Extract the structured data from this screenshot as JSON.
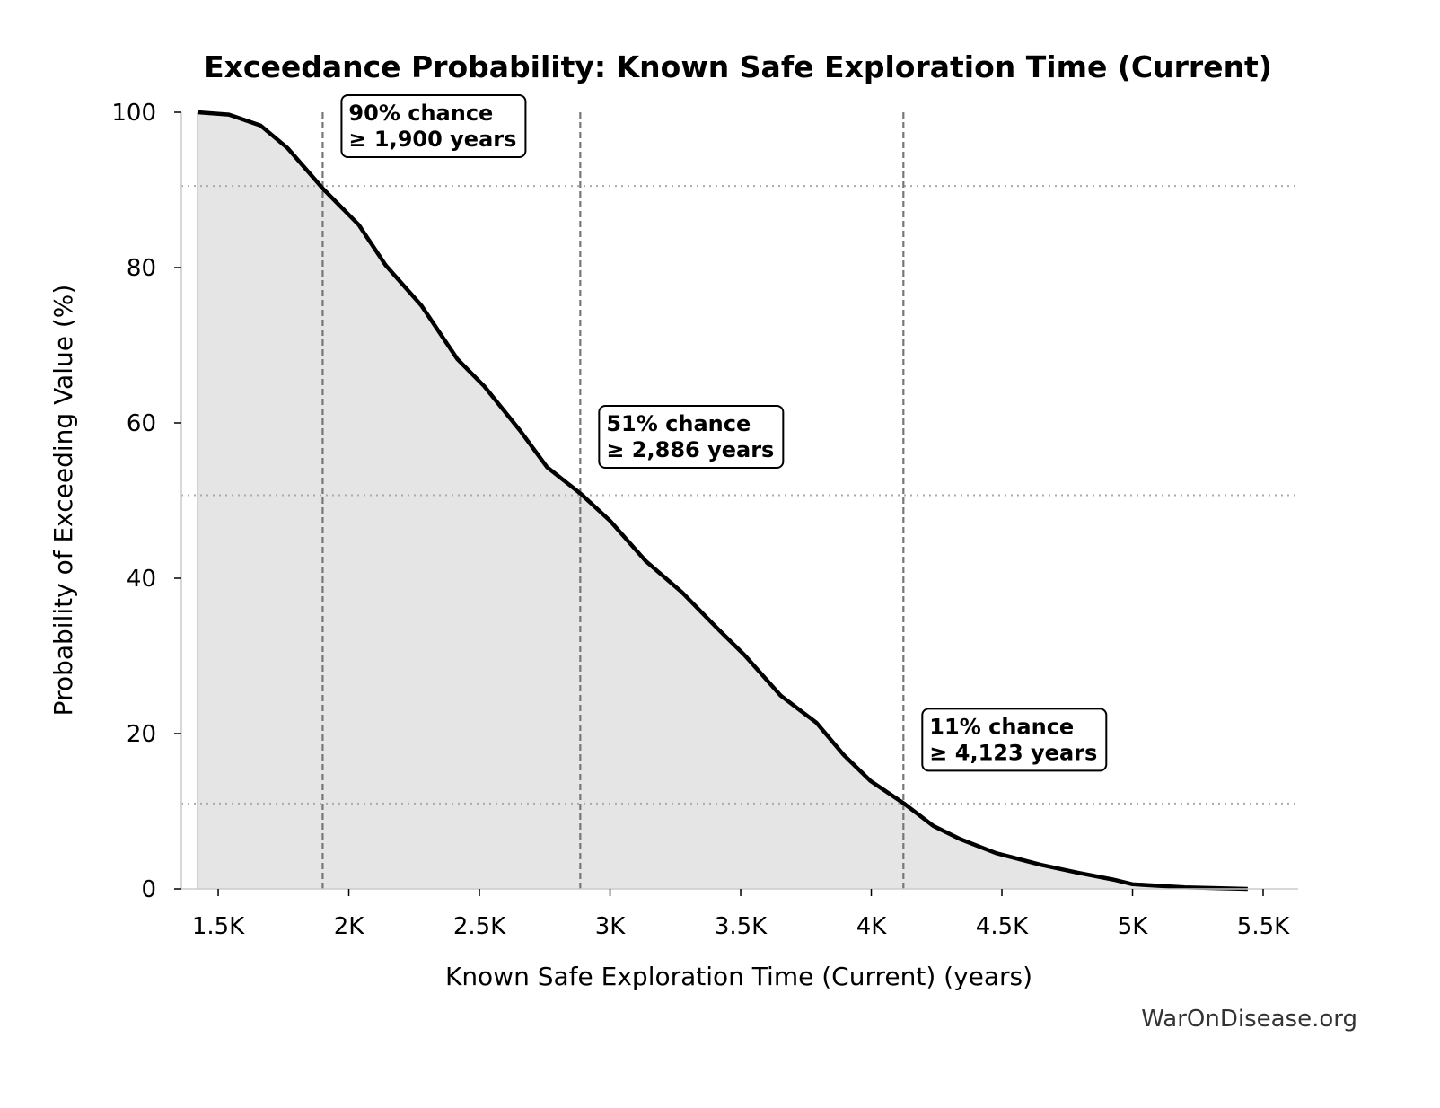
{
  "chart_data": {
    "type": "area",
    "title": "Exceedance Probability: Known Safe Exploration Time (Current)",
    "xlabel": "Known Safe Exploration Time (Current) (years)",
    "ylabel": "Probability of Exceeding Value (%)",
    "xlim": [
      1359,
      5634
    ],
    "ylim": [
      0,
      100
    ],
    "xticks": [
      1500,
      2000,
      2500,
      3000,
      3500,
      4000,
      4500,
      5000,
      5500
    ],
    "xtick_labels": [
      "1.5K",
      "2K",
      "2.5K",
      "3K",
      "3.5K",
      "4K",
      "4.5K",
      "5K",
      "5.5K"
    ],
    "yticks": [
      0,
      20,
      40,
      60,
      80,
      100
    ],
    "ytick_labels": [
      "0",
      "20",
      "40",
      "60",
      "80",
      "100"
    ],
    "grid": false,
    "colors": {
      "line": "#000000",
      "fill": "#e5e5e5",
      "ref": "#777777"
    },
    "x": [
      1421,
      1541,
      1662,
      1765,
      1900,
      2038,
      2141,
      2278,
      2416,
      2519,
      2656,
      2759,
      2887,
      3000,
      3137,
      3275,
      3412,
      3515,
      3653,
      3790,
      3893,
      3997,
      4125,
      4238,
      4341,
      4478,
      4650,
      4788,
      4926,
      5000,
      5200,
      5441
    ],
    "y": [
      100,
      99.7,
      98.3,
      95.4,
      90.2,
      85.5,
      80.3,
      75.1,
      68.2,
      64.7,
      59,
      54.3,
      50.9,
      47.4,
      42.2,
      38.2,
      33.5,
      30.1,
      24.9,
      21.4,
      17.3,
      13.9,
      11,
      8.1,
      6.4,
      4.6,
      3.1,
      2.1,
      1.2,
      0.6,
      0.2,
      0
    ],
    "reference_lines": [
      {
        "x": 1900,
        "y": 90.5
      },
      {
        "x": 2886,
        "y": 50.7
      },
      {
        "x": 4123,
        "y": 11
      }
    ],
    "annotations": [
      {
        "line1": "90% chance",
        "line2": "≥ 1,900 years",
        "x": 1900,
        "y": 100
      },
      {
        "line1": "51% chance",
        "line2": "≥ 2,886 years",
        "x": 2886,
        "y": 60
      },
      {
        "line1": "11% chance",
        "line2": "≥ 4,123 years",
        "x": 4123,
        "y": 21
      }
    ]
  },
  "watermark": "WarOnDisease.org"
}
